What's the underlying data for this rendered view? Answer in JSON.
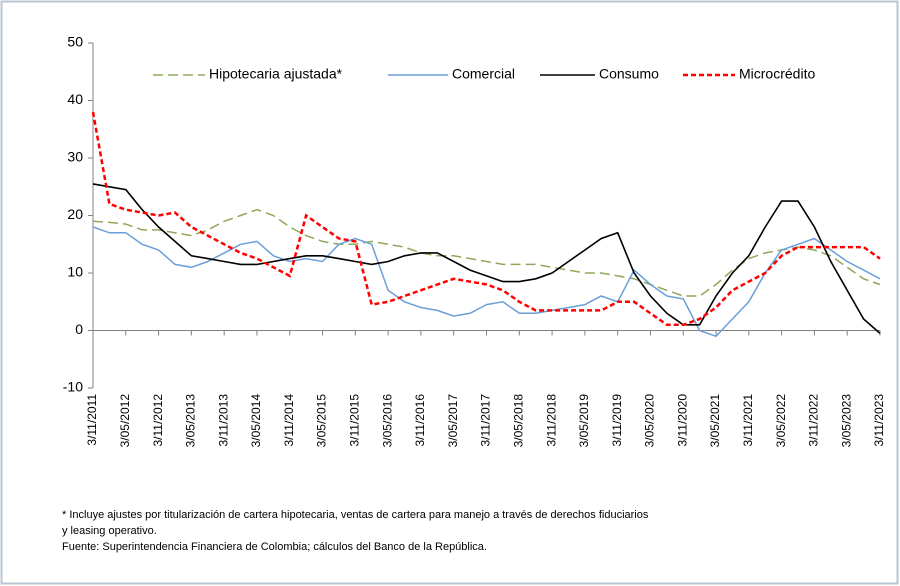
{
  "chart_data": {
    "type": "line",
    "categories": [
      "3/11/2011",
      null,
      "3/05/2012",
      null,
      "3/11/2012",
      null,
      "3/05/2013",
      null,
      "3/11/2013",
      null,
      "3/05/2014",
      null,
      "3/11/2014",
      null,
      "3/05/2015",
      null,
      "3/11/2015",
      null,
      "3/05/2016",
      null,
      "3/11/2016",
      null,
      "3/05/2017",
      null,
      "3/11/2017",
      null,
      "3/05/2018",
      null,
      "3/11/2018",
      null,
      "3/05/2019",
      null,
      "3/11/2019",
      null,
      "3/05/2020",
      null,
      "3/11/2020",
      null,
      "3/05/2021",
      null,
      "3/11/2021",
      null,
      "3/05/2022",
      null,
      "3/11/2022",
      null,
      "3/05/2023",
      null,
      "3/11/2023"
    ],
    "series": [
      {
        "name": "Hipotecaria ajustada*",
        "color": "#8fa85a",
        "dash": true,
        "values": [
          19,
          18.8,
          18.5,
          17.5,
          17.5,
          17,
          16.5,
          17.5,
          19,
          20,
          21,
          20,
          18,
          16.5,
          15.5,
          15,
          15,
          15.5,
          15,
          14.5,
          13.5,
          13,
          13,
          12.5,
          12,
          11.5,
          11.5,
          11.5,
          11,
          10.5,
          10,
          10,
          9.5,
          9,
          8,
          7,
          6,
          6,
          8,
          10.5,
          12.5,
          13.5,
          14,
          14.5,
          14,
          13,
          11,
          9,
          8
        ]
      },
      {
        "name": "Comercial",
        "color": "#6a9fd8",
        "dash": false,
        "values": [
          18,
          17,
          17,
          15,
          14,
          11.5,
          11,
          12,
          13.5,
          15,
          15.5,
          13,
          12,
          12.5,
          12,
          15,
          16,
          15,
          7,
          5,
          4,
          3.5,
          2.5,
          3,
          4.5,
          5,
          3,
          3,
          3.5,
          4,
          4.5,
          6,
          5,
          10.5,
          8,
          6,
          5.5,
          0,
          -1,
          2,
          5,
          10,
          14,
          15,
          16,
          14,
          12,
          10.5,
          9
        ]
      },
      {
        "name": "Consumo",
        "color": "#000000",
        "dash": false,
        "values": [
          25.5,
          25,
          24.5,
          21,
          18,
          15.5,
          13,
          12.5,
          12,
          11.5,
          11.5,
          12,
          12.5,
          13,
          13,
          12.5,
          12,
          11.5,
          12,
          13,
          13.5,
          13.5,
          12,
          10.5,
          9.5,
          8.5,
          8.5,
          9,
          10,
          12,
          14,
          16,
          17,
          10,
          6,
          3,
          1,
          1,
          6,
          10,
          13,
          18,
          22.5,
          22.5,
          18,
          12,
          7,
          2,
          -0.5
        ]
      },
      {
        "name": "Microcrédito",
        "color": "#ff0000",
        "dash": true,
        "values": [
          38,
          22,
          21,
          20.5,
          20,
          20.5,
          18,
          16.5,
          15,
          13.5,
          12.5,
          11,
          9.5,
          20,
          18,
          16,
          15.5,
          4.5,
          5,
          6,
          7,
          8,
          9,
          8.5,
          8,
          7,
          5,
          3.5,
          3.5,
          3.5,
          3.5,
          3.5,
          5,
          5,
          3,
          1,
          1,
          2,
          4,
          7,
          8.5,
          10,
          13,
          14.5,
          14.5,
          14.5,
          14.5,
          14.5,
          12.5
        ]
      }
    ],
    "ylim": [
      -10,
      50
    ],
    "yticks": [
      -10,
      0,
      10,
      20,
      30,
      40,
      50
    ],
    "notes": [
      "* Incluye ajustes por titularización de cartera hipotecaria, ventas de cartera para manejo a través de derechos fiduciarios",
      "y leasing operativo.",
      "Fuente: Superintendencia Financiera de Colombia; cálculos del Banco de la República."
    ]
  }
}
